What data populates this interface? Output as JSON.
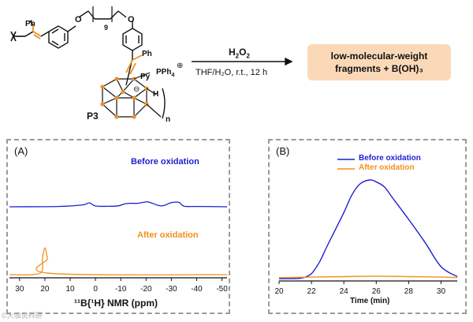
{
  "scheme": {
    "polymer_label": "P3",
    "subscript_n": "n",
    "subscript_9": "9",
    "ph_top": "Ph",
    "ph_mid": "Ph",
    "py_label": "Py",
    "pph4_label": "PPh",
    "pph4_sub": "4",
    "charge_plus": "⊕",
    "charge_minus": "⊖",
    "h_label": "H",
    "o_top": "O",
    "o_right": "O",
    "reagent": "H",
    "reagent_sub": "2",
    "reagent_tail": "O",
    "reagent_sub2": "2",
    "conditions": "THF/H₂O, r.t., 12 h",
    "product_line1": "low-molecular-weight",
    "product_line2": "fragments +  B(OH)₃"
  },
  "panel_a": {
    "label": "(A)",
    "before_label": "Before oxidation",
    "after_label": "After oxidation",
    "xlabel": "¹¹B{¹H} NMR (ppm)"
  },
  "panel_b": {
    "label": "(B)",
    "legend_before": "Before oxidation",
    "legend_after": "After oxidation",
    "xlabel": "Time (min)"
  },
  "colors": {
    "blue": "#1f1fd0",
    "orange": "#f0921c",
    "chem_orange": "#e8902a"
  },
  "watermark": "©大咖说科研",
  "chart_data": [
    {
      "type": "line",
      "title": "(A)",
      "xlabel": "¹¹B{¹H} NMR (ppm)",
      "ylabel": "",
      "xlim": [
        34,
        -52
      ],
      "x_ticks": [
        30,
        20,
        10,
        0,
        -10,
        -20,
        -30,
        -40,
        -50
      ],
      "series": [
        {
          "name": "Before oxidation",
          "color": "#1f1fd0",
          "x": [
            34,
            15,
            5,
            2.5,
            0,
            -5,
            -9,
            -11.5,
            -13.5,
            -16.5,
            -19,
            -21,
            -25,
            -27,
            -30,
            -33,
            -35,
            -40,
            -52
          ],
          "y": [
            0,
            0.02,
            0.12,
            0.25,
            0.05,
            0.03,
            0.06,
            0.18,
            0.22,
            0.22,
            0.28,
            0.3,
            0.08,
            0.08,
            0.26,
            0.28,
            0.04,
            0.02,
            0
          ]
        },
        {
          "name": "After oxidation",
          "color": "#f0921c",
          "x": [
            34,
            22,
            21,
            20,
            19,
            18,
            -52
          ],
          "y": [
            0,
            0.05,
            0.6,
            1.0,
            0.6,
            0.05,
            0
          ]
        }
      ]
    },
    {
      "type": "line",
      "title": "(B)",
      "xlabel": "Time (min)",
      "ylabel": "",
      "xlim": [
        20,
        31
      ],
      "x_ticks": [
        20,
        22,
        24,
        26,
        28,
        30
      ],
      "series": [
        {
          "name": "Before oxidation",
          "color": "#1f1fd0",
          "x": [
            20,
            21,
            21.5,
            22,
            22.5,
            23,
            24,
            24.5,
            25,
            25.6,
            26,
            26.5,
            27,
            28,
            29,
            30,
            31
          ],
          "y": [
            0,
            0,
            0.01,
            0.05,
            0.17,
            0.34,
            0.67,
            0.85,
            0.96,
            1.0,
            0.98,
            0.93,
            0.82,
            0.6,
            0.37,
            0.12,
            0.02
          ]
        },
        {
          "name": "After oxidation",
          "color": "#f0921c",
          "x": [
            20,
            22,
            24,
            26,
            28,
            30,
            31
          ],
          "y": [
            0.01,
            0.015,
            0.02,
            0.025,
            0.02,
            0.015,
            0.01
          ]
        }
      ]
    }
  ]
}
